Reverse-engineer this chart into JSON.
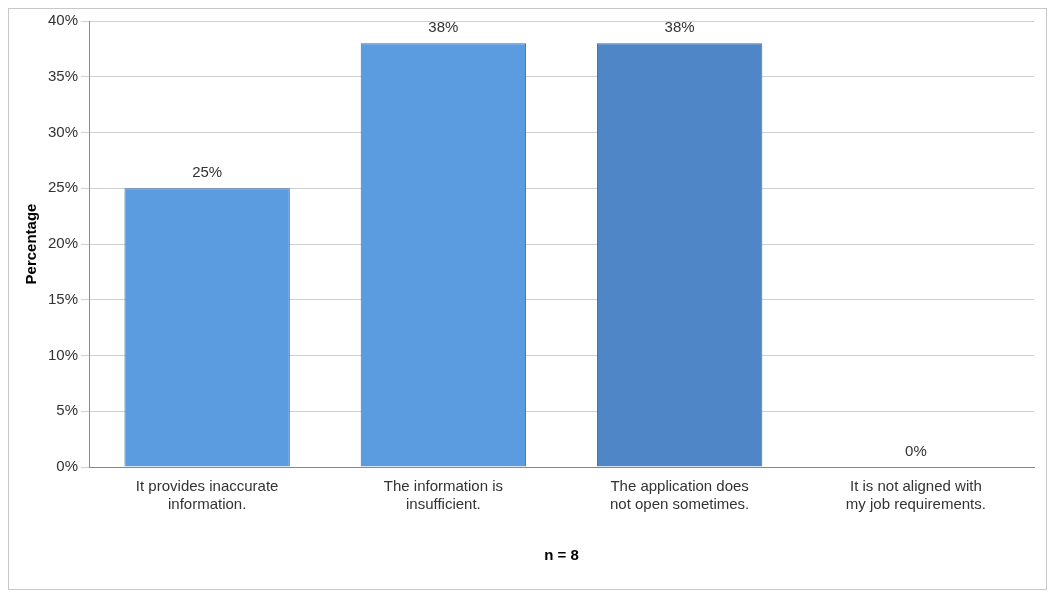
{
  "chart_data": {
    "type": "bar",
    "xlabel": "n = 8",
    "ylabel": "Percentage",
    "categories": [
      "It provides inaccurate information.",
      "The information is insufficient.",
      "The application does not open sometimes.",
      "It is not aligned with my job requirements."
    ],
    "values": [
      25,
      38,
      38,
      0
    ],
    "colors": [
      "#5b9be0",
      "#5b9be0",
      "#4f86c8",
      "#5b9be0"
    ],
    "ylim": [
      0,
      40
    ],
    "yticks": [
      {
        "value": 0,
        "label": "0%"
      },
      {
        "value": 5,
        "label": "5%"
      },
      {
        "value": 10,
        "label": "10%"
      },
      {
        "value": 15,
        "label": "15%"
      },
      {
        "value": 20,
        "label": "20%"
      },
      {
        "value": 25,
        "label": "25%"
      },
      {
        "value": 30,
        "label": "30%"
      },
      {
        "value": 35,
        "label": "35%"
      },
      {
        "value": 40,
        "label": "40%"
      }
    ],
    "value_labels": [
      "25%",
      "38%",
      "38%",
      "0%"
    ],
    "grid": "y",
    "legend": false
  }
}
